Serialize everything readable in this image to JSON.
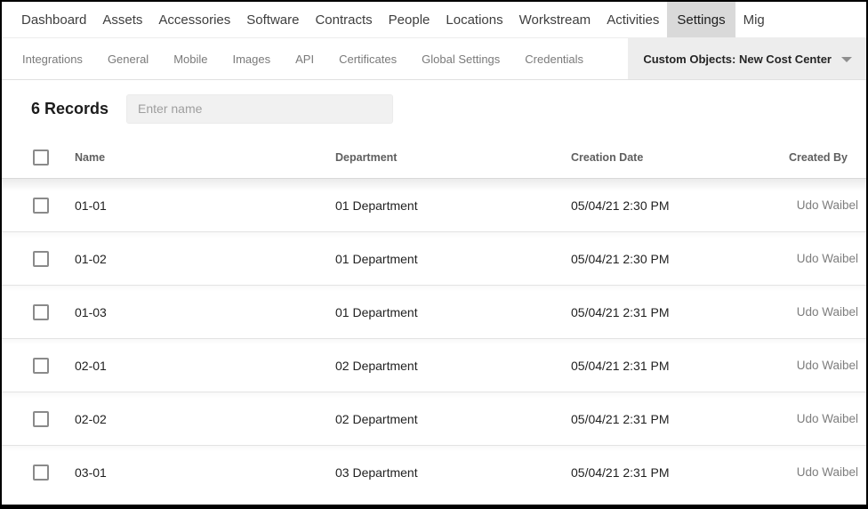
{
  "topnav": {
    "items": [
      {
        "label": "Dashboard",
        "active": false
      },
      {
        "label": "Assets",
        "active": false
      },
      {
        "label": "Accessories",
        "active": false
      },
      {
        "label": "Software",
        "active": false
      },
      {
        "label": "Contracts",
        "active": false
      },
      {
        "label": "People",
        "active": false
      },
      {
        "label": "Locations",
        "active": false
      },
      {
        "label": "Workstream",
        "active": false
      },
      {
        "label": "Activities",
        "active": false
      },
      {
        "label": "Settings",
        "active": true
      },
      {
        "label": "Mig",
        "active": false
      }
    ]
  },
  "subnav": {
    "items": [
      "Integrations",
      "General",
      "Mobile",
      "Images",
      "API",
      "Certificates",
      "Global Settings",
      "Credentials"
    ],
    "selected": {
      "label": "Custom Objects: New Cost Center",
      "icon": "caret-down-icon"
    }
  },
  "records": {
    "count_label": "6 Records",
    "search_value": "",
    "search_placeholder": "Enter name"
  },
  "table": {
    "columns": [
      "Name",
      "Department",
      "Creation Date",
      "Created By"
    ],
    "rows": [
      {
        "checked": false,
        "name": "01-01",
        "department": "01 Department",
        "creation_date": "05/04/21 2:30 PM",
        "created_by": "Udo Waibel"
      },
      {
        "checked": false,
        "name": "01-02",
        "department": "01 Department",
        "creation_date": "05/04/21 2:30 PM",
        "created_by": "Udo Waibel"
      },
      {
        "checked": false,
        "name": "01-03",
        "department": "01 Department",
        "creation_date": "05/04/21 2:31 PM",
        "created_by": "Udo Waibel"
      },
      {
        "checked": false,
        "name": "02-01",
        "department": "02 Department",
        "creation_date": "05/04/21 2:31 PM",
        "created_by": "Udo Waibel"
      },
      {
        "checked": false,
        "name": "02-02",
        "department": "02 Department",
        "creation_date": "05/04/21 2:31 PM",
        "created_by": "Udo Waibel"
      },
      {
        "checked": false,
        "name": "03-01",
        "department": "03 Department",
        "creation_date": "05/04/21 2:31 PM",
        "created_by": "Udo Waibel"
      }
    ]
  },
  "colors": {
    "active_tab_bg": "#d9d9d9",
    "selected_subtab_bg": "#ededed",
    "search_bg": "#f1f1f1",
    "row_separator": "#e3e3e3",
    "primary_text": "#1f1f1f",
    "muted_text": "#7d7d7d",
    "frame_border": "#000000"
  }
}
